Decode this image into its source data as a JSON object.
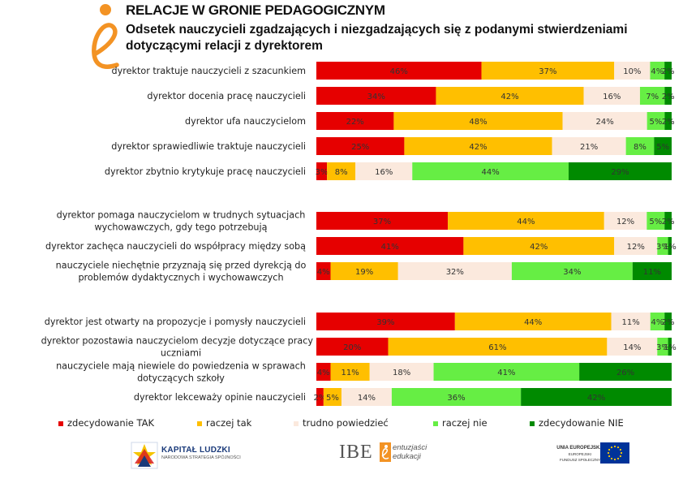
{
  "header": {
    "title": "RELACJE W GRONIE PEDAGOGICZNYM",
    "subtitle": "Odsetek nauczycieli zgadzających i niezgadzających się z podanymi stwierdzeniami dotyczącymi relacji z dyrektorem"
  },
  "chart_data": {
    "type": "bar",
    "orientation": "horizontal-stacked-100",
    "series": [
      {
        "name": "zdecydowanie TAK",
        "color": "#e60000"
      },
      {
        "name": "raczej tak",
        "color": "#ffbf00"
      },
      {
        "name": "trudno powiedzieć",
        "color": "#fbe9dd"
      },
      {
        "name": "raczej nie",
        "color": "#66ee44"
      },
      {
        "name": "zdecydowanie NIE",
        "color": "#008a00"
      }
    ],
    "categories": [
      {
        "label": [
          "dyrektor traktuje nauczycieli z szacunkiem"
        ],
        "values": [
          46,
          37,
          10,
          4,
          2
        ],
        "labels": [
          "46%",
          "37%",
          "10%",
          "4%",
          "2%"
        ]
      },
      {
        "label": [
          "dyrektor docenia pracę nauczycieli"
        ],
        "values": [
          34,
          42,
          16,
          7,
          2
        ],
        "labels": [
          "34%",
          "42%",
          "16%",
          "7%",
          "2%"
        ]
      },
      {
        "label": [
          "dyrektor ufa nauczycielom"
        ],
        "values": [
          22,
          48,
          24,
          5,
          2
        ],
        "labels": [
          "22%",
          "48%",
          "24%",
          "5%",
          "2%"
        ]
      },
      {
        "label": [
          "dyrektor sprawiedliwie traktuje nauczycieli"
        ],
        "values": [
          25,
          42,
          21,
          8,
          5
        ],
        "labels": [
          "25%",
          "42%",
          "21%",
          "8%",
          "5%"
        ]
      },
      {
        "label": [
          "dyrektor zbytnio krytykuje pracę nauczycieli"
        ],
        "values": [
          3,
          8,
          16,
          44,
          29
        ],
        "labels": [
          "3%",
          "8%",
          "16%",
          "44%",
          "29%"
        ]
      },
      {
        "label": [
          "dyrektor pomaga nauczycielom w trudnych sytuacjach",
          "wychowawczych, gdy tego potrzebują"
        ],
        "values": [
          37,
          44,
          12,
          5,
          2
        ],
        "labels": [
          "37%",
          "44%",
          "12%",
          "5%",
          "2%"
        ]
      },
      {
        "label": [
          "dyrektor zachęca nauczycieli do współpracy między sobą"
        ],
        "values": [
          41,
          42,
          12,
          3,
          1
        ],
        "labels": [
          "41%",
          "42%",
          "12%",
          "3%",
          "1%"
        ]
      },
      {
        "label": [
          "nauczyciele niechętnie przyznają się przed dyrekcją do",
          "problemów dydaktycznych i wychowawczych"
        ],
        "values": [
          4,
          19,
          32,
          34,
          11
        ],
        "labels": [
          "4%",
          "19%",
          "32%",
          "34%",
          "11%"
        ]
      },
      {
        "label": [
          "dyrektor jest otwarty na propozycje i pomysły nauczycieli"
        ],
        "values": [
          39,
          44,
          11,
          4,
          2
        ],
        "labels": [
          "39%",
          "44%",
          "11%",
          "4%",
          "2%"
        ]
      },
      {
        "label": [
          "dyrektor pozostawia nauczycielom decyzje dotyczące pracy z",
          "uczniami"
        ],
        "values": [
          20,
          61,
          14,
          3,
          1
        ],
        "labels": [
          "20%",
          "61%",
          "14%",
          "3%",
          "1%"
        ]
      },
      {
        "label": [
          "nauczyciele mają niewiele do powiedzenia w sprawach",
          "dotyczących szkoły"
        ],
        "values": [
          4,
          11,
          18,
          41,
          26
        ],
        "labels": [
          "4%",
          "11%",
          "18%",
          "41%",
          "26%"
        ]
      },
      {
        "label": [
          "dyrektor lekceważy opinie nauczycieli"
        ],
        "values": [
          2,
          5,
          14,
          36,
          42
        ],
        "labels": [
          "2%",
          "5%",
          "14%",
          "36%",
          "42%"
        ]
      }
    ],
    "xlim": [
      0,
      100
    ],
    "grid": false,
    "legend_position": "bottom"
  },
  "footer": {
    "kl_title": "KAPITAŁ LUDZKI",
    "kl_sub": "NARODOWA STRATEGIA SPÓJNOŚCI",
    "ibe": "IBE",
    "ibe_tag_1": "entuzjaści",
    "ibe_tag_2": "edukacji",
    "ue_1": "UNIA EUROPEJSKA",
    "ue_2": "EUROPEJSKI",
    "ue_3": "FUNDUSZ SPOŁECZNY"
  }
}
